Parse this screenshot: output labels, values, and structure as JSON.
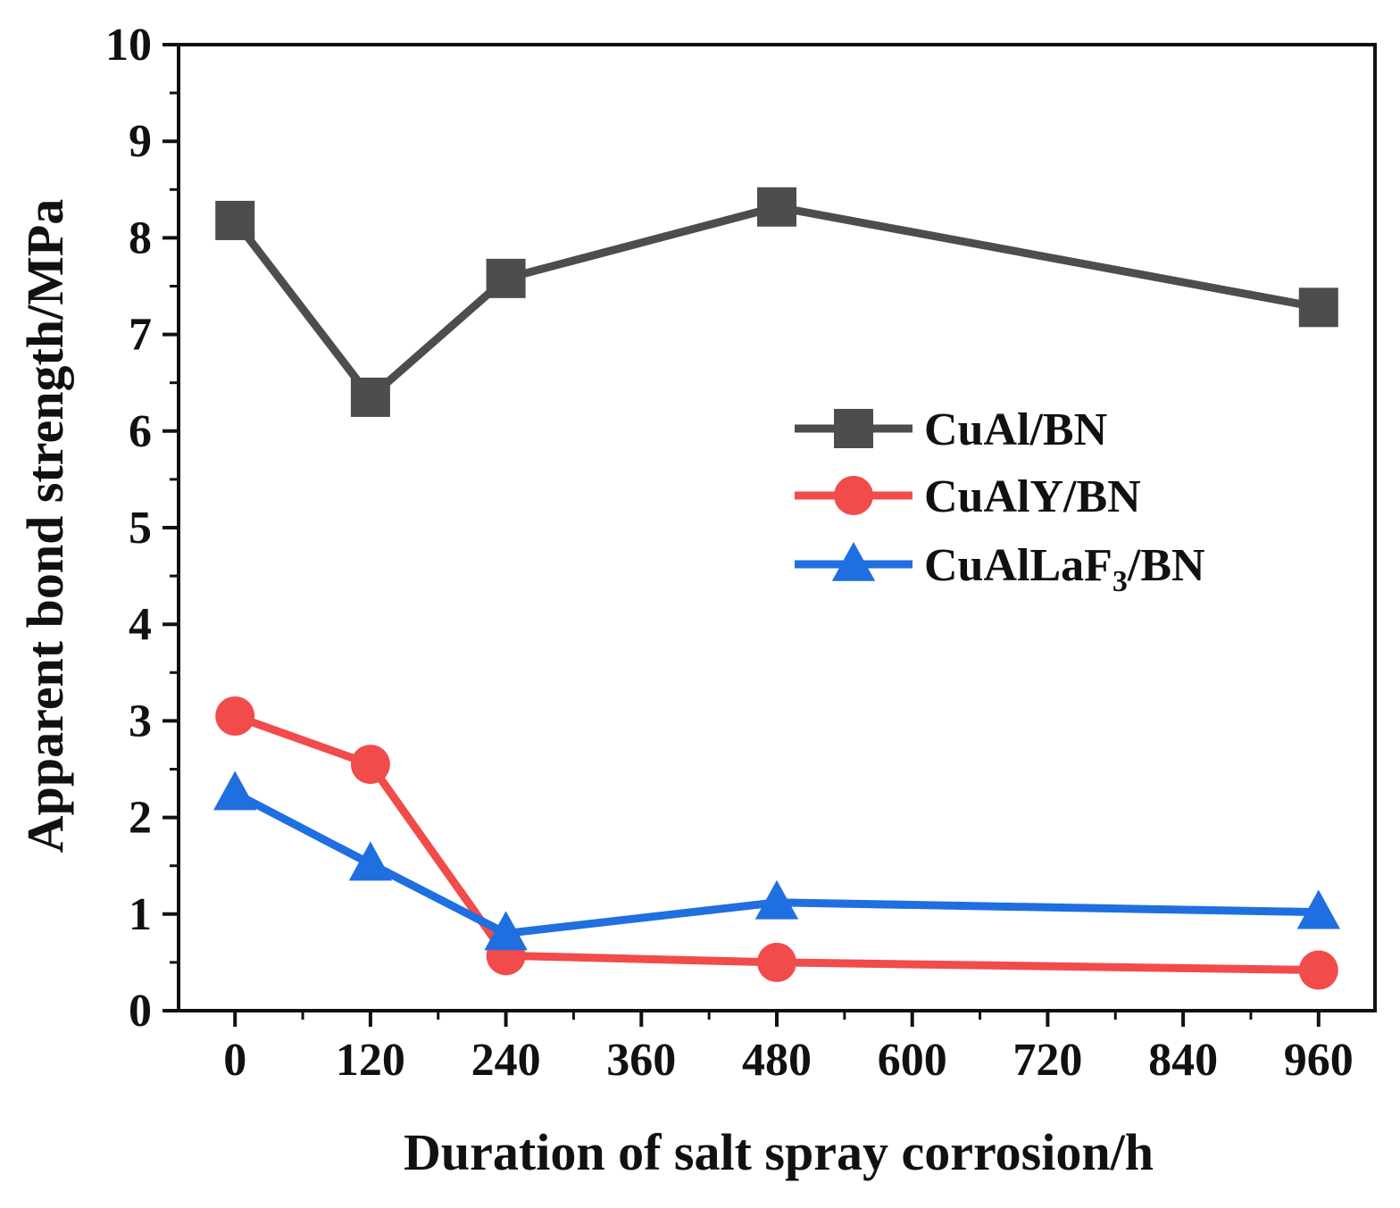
{
  "chart_data": {
    "type": "line",
    "xlabel": "Duration of salt spray corrosion/h",
    "ylabel": "Apparent bond strength/MPa",
    "xlim": [
      -50,
      1010
    ],
    "ylim": [
      0,
      10
    ],
    "x_ticks": [
      0,
      120,
      240,
      360,
      480,
      600,
      720,
      840,
      960
    ],
    "y_ticks": [
      0,
      1,
      2,
      3,
      4,
      5,
      6,
      7,
      8,
      9,
      10
    ],
    "grid": false,
    "legend_position": "right-middle",
    "x": [
      0,
      120,
      240,
      480,
      960
    ],
    "series": [
      {
        "name": "CuAl/BN",
        "name_parts": [
          {
            "text": "CuAl/BN"
          }
        ],
        "color": "#4d4d4d",
        "marker": "square",
        "values": [
          8.18,
          6.35,
          7.58,
          8.32,
          7.28
        ]
      },
      {
        "name": "CuAlY/BN",
        "name_parts": [
          {
            "text": "CuAlY/BN"
          }
        ],
        "color": "#f24b4b",
        "marker": "circle",
        "values": [
          3.05,
          2.55,
          0.57,
          0.5,
          0.42
        ]
      },
      {
        "name": "CuAlLaF3/BN",
        "name_parts": [
          {
            "text": "CuAlLaF"
          },
          {
            "text": "3",
            "sub": true
          },
          {
            "text": "/BN"
          }
        ],
        "color": "#1f6fe0",
        "marker": "triangle",
        "values": [
          2.25,
          1.52,
          0.8,
          1.12,
          1.02
        ]
      }
    ]
  }
}
